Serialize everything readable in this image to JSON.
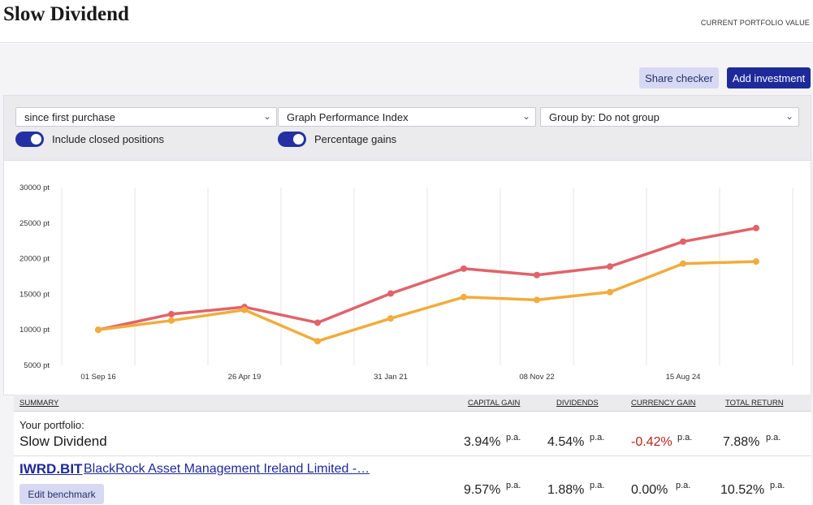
{
  "header": {
    "title": "Slow Dividend",
    "portfolio_value_label": "CURRENT PORTFOLIO VALUE"
  },
  "actions": {
    "share_checker": "Share checker",
    "add_investment": "Add investment"
  },
  "filters": {
    "period": "since first purchase",
    "graph": "Graph Performance Index",
    "group": "Group by: Do not group",
    "include_closed_label": "Include closed positions",
    "include_closed_on": true,
    "percentage_gains_label": "Percentage gains",
    "percentage_gains_on": true
  },
  "chart_data": {
    "type": "line",
    "y_tick_labels": [
      "30000 pt",
      "25000 pt",
      "20000 pt",
      "15000 pt",
      "10000 pt",
      "5000 pt"
    ],
    "y_ticks": [
      30000,
      25000,
      20000,
      15000,
      10000,
      5000
    ],
    "ylim": [
      5000,
      30000
    ],
    "x_tick_labels": [
      "01 Sep 16",
      "26 Apr 19",
      "31 Jan 21",
      "08 Nov 22",
      "15 Aug 24"
    ],
    "grid": true,
    "legend_position": "bottom",
    "series": [
      {
        "name": "Slow Dividend",
        "color": "#f2ac3c",
        "values": [
          10000,
          11300,
          12800,
          8400,
          11600,
          14600,
          14200,
          15300,
          19300,
          19600
        ]
      },
      {
        "name": "BlackRock Asset Management Ireland Limited - BlackRock iShares MSCI World UCITS ETF USD (Dist)",
        "color": "#e0636a",
        "values": [
          10000,
          12200,
          13200,
          11000,
          15100,
          18600,
          17700,
          18900,
          22400,
          24300
        ]
      }
    ]
  },
  "summary": {
    "headers": {
      "summary": "SUMMARY",
      "capital_gain": "CAPITAL GAIN",
      "dividends": "DIVIDENDS",
      "currency_gain": "CURRENCY GAIN",
      "total_return": "TOTAL RETURN"
    },
    "portfolio": {
      "label": "Your portfolio:",
      "name": "Slow Dividend",
      "capital_gain": "3.94%",
      "dividends": "4.54%",
      "currency_gain": "-0.42%",
      "total_return": "7.88%",
      "unit": "p.a."
    },
    "benchmark": {
      "ticker": "IWRD.BIT",
      "name": "BlackRock Asset Management Ireland Limited -…",
      "edit_label": "Edit benchmark",
      "capital_gain": "9.57%",
      "dividends": "1.88%",
      "currency_gain": "0.00%",
      "total_return": "10.52%",
      "unit": "p.a."
    }
  }
}
